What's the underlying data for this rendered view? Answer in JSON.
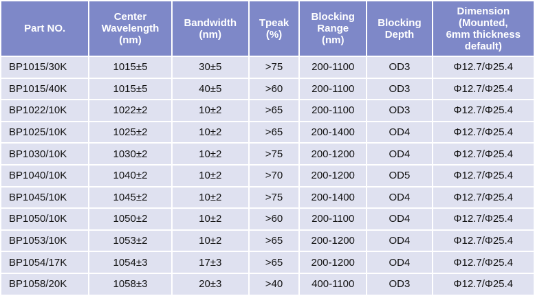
{
  "table": {
    "colors": {
      "header_bg": "#7e88c8",
      "row_bg": "#dfe1f0"
    },
    "headers": [
      [
        "Part NO."
      ],
      [
        "Center",
        "Wavelength",
        "(nm)"
      ],
      [
        "Bandwidth",
        "(nm)"
      ],
      [
        "Tpeak",
        "(%)"
      ],
      [
        "Blocking",
        "Range",
        "(nm)"
      ],
      [
        "Blocking",
        "Depth"
      ],
      [
        "Dimension",
        "(Mounted,",
        "6mm thickness",
        "default)"
      ]
    ],
    "rows": [
      [
        "BP1015/30K",
        "1015±5",
        "30±5",
        ">75",
        "200-1100",
        "OD3",
        "Φ12.7/Φ25.4"
      ],
      [
        "BP1015/40K",
        "1015±5",
        "40±5",
        ">60",
        "200-1100",
        "OD3",
        "Φ12.7/Φ25.4"
      ],
      [
        "BP1022/10K",
        "1022±2",
        "10±2",
        ">65",
        "200-1100",
        "OD3",
        "Φ12.7/Φ25.4"
      ],
      [
        "BP1025/10K",
        "1025±2",
        "10±2",
        ">65",
        "200-1400",
        "OD4",
        "Φ12.7/Φ25.4"
      ],
      [
        "BP1030/10K",
        "1030±2",
        "10±2",
        ">75",
        "200-1200",
        "OD4",
        "Φ12.7/Φ25.4"
      ],
      [
        "BP1040/10K",
        "1040±2",
        "10±2",
        ">70",
        "200-1200",
        "OD5",
        "Φ12.7/Φ25.4"
      ],
      [
        "BP1045/10K",
        "1045±2",
        "10±2",
        ">75",
        "200-1400",
        "OD4",
        "Φ12.7/Φ25.4"
      ],
      [
        "BP1050/10K",
        "1050±2",
        "10±2",
        ">60",
        "200-1100",
        "OD4",
        "Φ12.7/Φ25.4"
      ],
      [
        "BP1053/10K",
        "1053±2",
        "10±2",
        ">65",
        "200-1200",
        "OD4",
        "Φ12.7/Φ25.4"
      ],
      [
        "BP1054/17K",
        "1054±3",
        "17±3",
        ">65",
        "200-1200",
        "OD4",
        "Φ12.7/Φ25.4"
      ],
      [
        "BP1058/20K",
        "1058±3",
        "20±3",
        ">40",
        "400-1100",
        "OD3",
        "Φ12.7/Φ25.4"
      ]
    ]
  }
}
